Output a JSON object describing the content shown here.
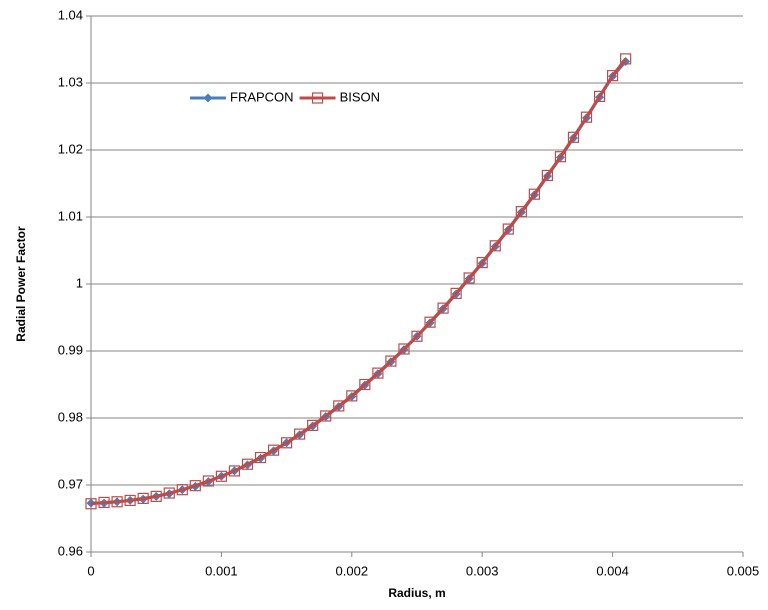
{
  "chart_data": {
    "type": "line",
    "x_label": "Radius, m",
    "y_label": "Radial Power Factor",
    "x": [
      0,
      0.0001,
      0.0002,
      0.0003,
      0.0004,
      0.0005,
      0.0006,
      0.0007,
      0.0008,
      0.0009,
      0.001,
      0.0011,
      0.0012,
      0.0013,
      0.0014,
      0.0015,
      0.0016,
      0.0017,
      0.0018,
      0.0019,
      0.002,
      0.0021,
      0.0022,
      0.0023,
      0.0024,
      0.0025,
      0.0026,
      0.0027,
      0.0028,
      0.0029,
      0.003,
      0.0031,
      0.0032,
      0.0033,
      0.0034,
      0.0035,
      0.0036,
      0.0037,
      0.0038,
      0.0039,
      0.004,
      0.0041
    ],
    "series": [
      {
        "name": "FRAPCON",
        "color": "#4a7ebb",
        "marker": "diamond",
        "values": [
          0.9673,
          0.9673,
          0.9675,
          0.9677,
          0.9679,
          0.9683,
          0.9687,
          0.9693,
          0.9698,
          0.9705,
          0.9713,
          0.9721,
          0.973,
          0.974,
          0.9751,
          0.9763,
          0.9775,
          0.9788,
          0.9802,
          0.9817,
          0.9832,
          0.9849,
          0.9866,
          0.9884,
          0.9902,
          0.9922,
          0.9942,
          0.9963,
          0.9985,
          1.0008,
          1.0031,
          1.0056,
          1.0081,
          1.0107,
          1.0133,
          1.0161,
          1.0189,
          1.0218,
          1.0248,
          1.0279,
          1.031,
          1.0332
        ]
      },
      {
        "name": "BISON",
        "color": "#be4b48",
        "marker": "square",
        "values": [
          0.9672,
          0.9674,
          0.9675,
          0.9677,
          0.968,
          0.9683,
          0.9688,
          0.9693,
          0.9699,
          0.9706,
          0.9713,
          0.9721,
          0.9731,
          0.9741,
          0.9752,
          0.9763,
          0.9776,
          0.9789,
          0.9803,
          0.9818,
          0.9833,
          0.985,
          0.9867,
          0.9885,
          0.9903,
          0.9922,
          0.9943,
          0.9964,
          0.9986,
          1.0009,
          1.0032,
          1.0057,
          1.0082,
          1.0108,
          1.0134,
          1.0162,
          1.019,
          1.0219,
          1.0249,
          1.028,
          1.0311,
          1.0336
        ]
      }
    ],
    "xlim": [
      0,
      0.005
    ],
    "xticks": [
      0,
      0.001,
      0.002,
      0.003,
      0.004,
      0.005
    ],
    "ylim": [
      0.96,
      1.04
    ],
    "yticks": [
      0.96,
      0.97,
      0.98,
      0.99,
      1,
      1.01,
      1.02,
      1.03,
      1.04
    ],
    "grid": true
  }
}
